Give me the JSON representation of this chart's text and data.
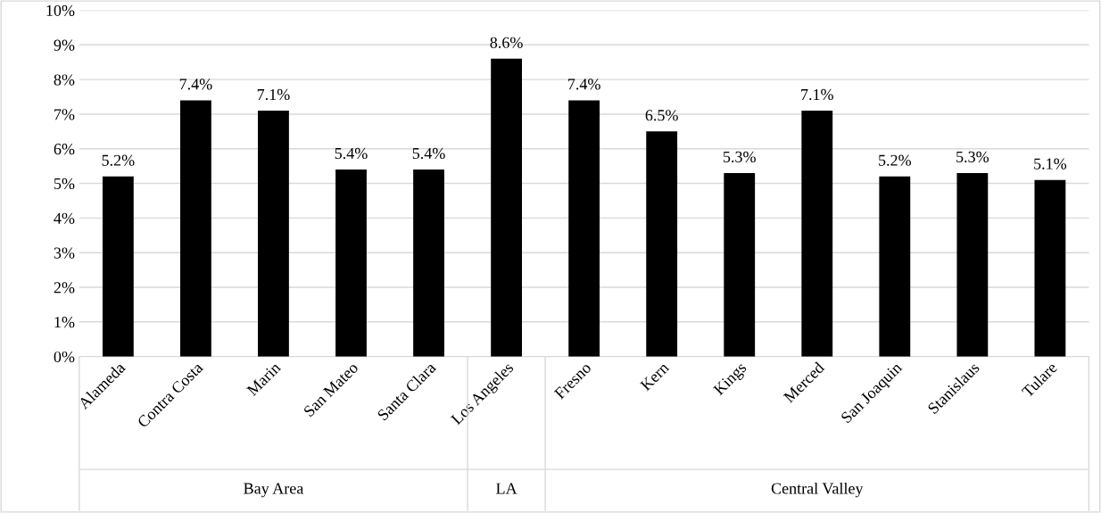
{
  "chart_data": {
    "type": "bar",
    "categories": [
      "Alameda",
      "Contra Costa",
      "Marin",
      "San Mateo",
      "Santa Clara",
      "Los Angeles",
      "Fresno",
      "Kern",
      "Kings",
      "Merced",
      "San Joaquin",
      "Stanislaus",
      "Tulare"
    ],
    "values": [
      5.2,
      7.4,
      7.1,
      5.4,
      5.4,
      8.6,
      7.4,
      6.5,
      5.3,
      7.1,
      5.2,
      5.3,
      5.1
    ],
    "value_labels": [
      "5.2%",
      "7.4%",
      "7.1%",
      "5.4%",
      "5.4%",
      "8.6%",
      "7.4%",
      "6.5%",
      "5.3%",
      "7.1%",
      "5.2%",
      "5.3%",
      "5.1%"
    ],
    "color": "#000000",
    "ylim": [
      0,
      10
    ],
    "yticks": [
      {
        "value": 0,
        "label": "0%"
      },
      {
        "value": 1,
        "label": "1%"
      },
      {
        "value": 2,
        "label": "2%"
      },
      {
        "value": 3,
        "label": "3%"
      },
      {
        "value": 4,
        "label": "4%"
      },
      {
        "value": 5,
        "label": "5%"
      },
      {
        "value": 6,
        "label": "6%"
      },
      {
        "value": 7,
        "label": "7%"
      },
      {
        "value": 8,
        "label": "8%"
      },
      {
        "value": 9,
        "label": "9%"
      },
      {
        "value": 10,
        "label": "10%"
      }
    ],
    "grid": "y",
    "legend": false,
    "annotations": [
      "Bay Area",
      "LA",
      "Central Valley"
    ]
  }
}
